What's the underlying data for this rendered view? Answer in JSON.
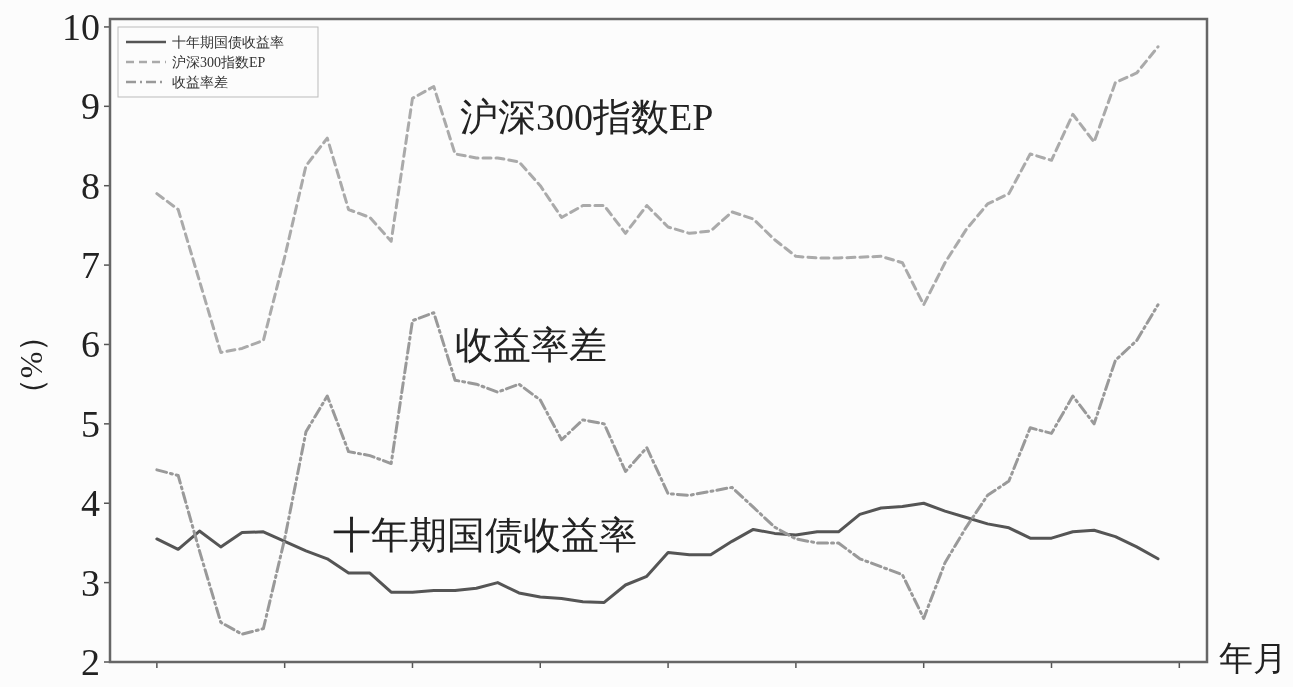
{
  "chart_data": {
    "type": "line",
    "xlabel": "年月",
    "ylabel": "（%）",
    "categories": [
      null,
      null,
      null,
      null,
      null,
      null,
      null,
      null,
      null,
      null,
      null,
      null,
      null,
      null,
      null,
      null,
      null,
      null,
      null,
      null,
      null,
      null,
      null,
      null,
      null,
      null,
      null,
      null,
      null,
      null,
      null,
      null,
      null,
      null,
      null,
      null,
      null,
      null,
      null,
      null,
      null,
      null,
      null,
      null,
      null,
      null,
      null,
      null
    ],
    "series": [
      {
        "name": "十年期国债收益率",
        "color": "#555555",
        "line_style": "solid",
        "values": [
          3.55,
          3.42,
          3.65,
          3.45,
          3.63,
          3.64,
          3.52,
          3.4,
          3.3,
          3.12,
          3.12,
          2.88,
          2.88,
          2.9,
          2.9,
          2.93,
          3.0,
          2.87,
          2.82,
          2.8,
          2.76,
          2.75,
          2.97,
          3.08,
          3.38,
          3.35,
          3.35,
          3.52,
          3.67,
          3.62,
          3.6,
          3.64,
          3.64,
          3.86,
          3.94,
          3.96,
          4.0,
          3.9,
          3.82,
          3.74,
          3.69,
          3.56,
          3.56,
          3.64,
          3.66,
          3.58,
          3.45,
          3.3
        ]
      },
      {
        "name": "沪深300指数EP",
        "color": "#aaaaaa",
        "line_style": "dashed",
        "values": [
          7.9,
          7.7,
          6.8,
          5.9,
          5.95,
          6.05,
          7.1,
          8.25,
          8.6,
          7.7,
          7.6,
          7.3,
          9.1,
          9.25,
          8.4,
          8.35,
          8.35,
          8.3,
          8.0,
          7.6,
          7.75,
          7.75,
          7.4,
          7.75,
          7.48,
          7.4,
          7.43,
          7.67,
          7.58,
          7.32,
          7.11,
          7.09,
          7.09,
          7.1,
          7.11,
          7.03,
          6.5,
          7.03,
          7.45,
          7.77,
          7.9,
          8.4,
          8.32,
          8.9,
          8.55,
          9.3,
          9.42,
          9.75
        ]
      },
      {
        "name": "收益率差",
        "color": "#999999",
        "line_style": "dashdot",
        "values": [
          4.42,
          4.35,
          3.4,
          2.5,
          2.35,
          2.42,
          3.55,
          4.9,
          5.35,
          4.65,
          4.6,
          4.5,
          6.3,
          6.4,
          5.55,
          5.5,
          5.4,
          5.5,
          5.3,
          4.8,
          5.05,
          5.0,
          4.4,
          4.7,
          4.12,
          4.1,
          4.15,
          4.2,
          3.95,
          3.7,
          3.55,
          3.5,
          3.5,
          3.3,
          3.2,
          3.1,
          2.55,
          3.25,
          3.7,
          4.1,
          4.28,
          4.95,
          4.88,
          5.35,
          5.0,
          5.8,
          6.05,
          6.5
        ]
      }
    ],
    "annotations": [
      "沪深300指数EP",
      "收益率差",
      "十年期国债收益率"
    ],
    "ylim": [
      2,
      10.1
    ],
    "yticks": [
      2,
      3,
      4,
      5,
      6,
      7,
      8,
      9,
      10
    ],
    "tick_labels": "y",
    "legend": "top left",
    "grid": false,
    "marker": "none"
  }
}
